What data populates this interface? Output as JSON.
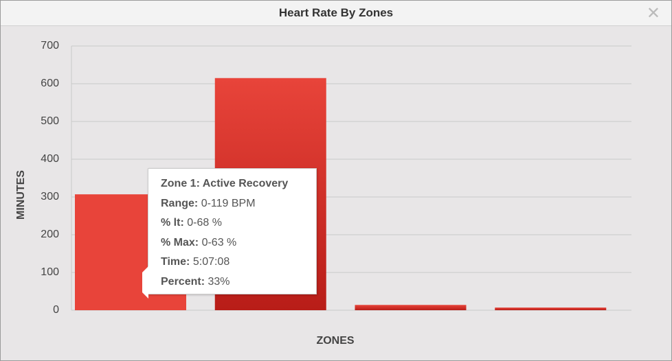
{
  "chart_data": {
    "type": "bar",
    "title": "Heart Rate By Zones",
    "x_label": "ZONES",
    "y_label": "MINUTES",
    "categories": [
      null,
      null,
      null,
      null
    ],
    "values": [
      307,
      615,
      14,
      7
    ],
    "color": "#e8443a",
    "ylim": [
      0,
      700
    ],
    "yticks": [
      0,
      100,
      200,
      300,
      400,
      500,
      600,
      700
    ],
    "grid": true
  },
  "tooltip": {
    "title": "Zone 1: Active Recovery",
    "rows": [
      {
        "label": "Range:",
        "value": "0-119 BPM"
      },
      {
        "label": "% lt:",
        "value": "0-68 %"
      },
      {
        "label": "% Max:",
        "value": "0-63 %"
      },
      {
        "label": "Time:",
        "value": "5:07:08"
      },
      {
        "label": "Percent:",
        "value": "33%"
      }
    ]
  }
}
